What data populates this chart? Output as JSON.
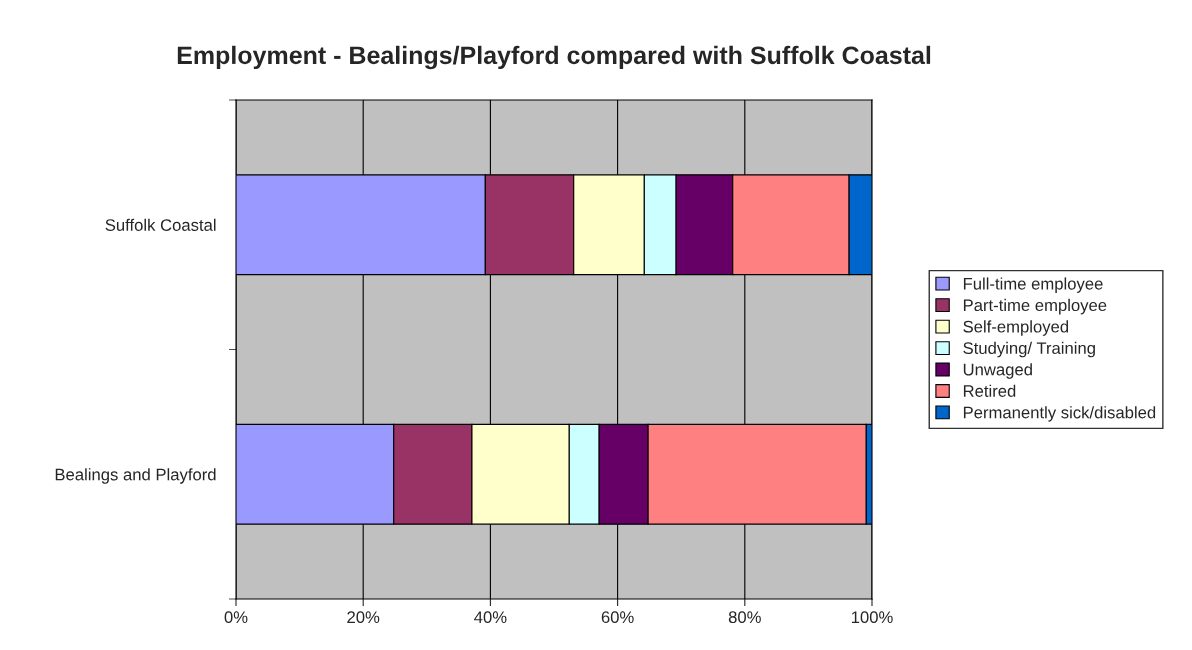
{
  "chart_data": {
    "type": "bar",
    "title": "Employment - Bealings/Playford compared with Suffolk Coastal",
    "orientation": "horizontal",
    "stacked": true,
    "categories": [
      "Suffolk Coastal",
      "Bealings and Playford"
    ],
    "series": [
      {
        "name": "Full-time employee",
        "color": "#9999ff",
        "values": [
          39.2,
          24.8
        ]
      },
      {
        "name": "Part-time employee",
        "color": "#993366",
        "values": [
          13.9,
          12.3
        ]
      },
      {
        "name": "Self-employed",
        "color": "#ffffcc",
        "values": [
          11.1,
          15.3
        ]
      },
      {
        "name": "Studying/ Training",
        "color": "#ccffff",
        "values": [
          5.0,
          4.7
        ]
      },
      {
        "name": "Unwaged",
        "color": "#660066",
        "values": [
          8.9,
          7.7
        ]
      },
      {
        "name": "Retired",
        "color": "#ff8080",
        "values": [
          18.3,
          34.3
        ]
      },
      {
        "name": "Permanently sick/disabled",
        "color": "#0066cc",
        "values": [
          3.6,
          0.9
        ]
      }
    ],
    "xlim": [
      0,
      100
    ],
    "xticks": [
      {
        "value": 0,
        "label": "0%"
      },
      {
        "value": 20,
        "label": "20%"
      },
      {
        "value": 40,
        "label": "40%"
      },
      {
        "value": 60,
        "label": "60%"
      },
      {
        "value": 80,
        "label": "80%"
      },
      {
        "value": 100,
        "label": "100%"
      }
    ],
    "grid": "x",
    "legend": "right"
  }
}
